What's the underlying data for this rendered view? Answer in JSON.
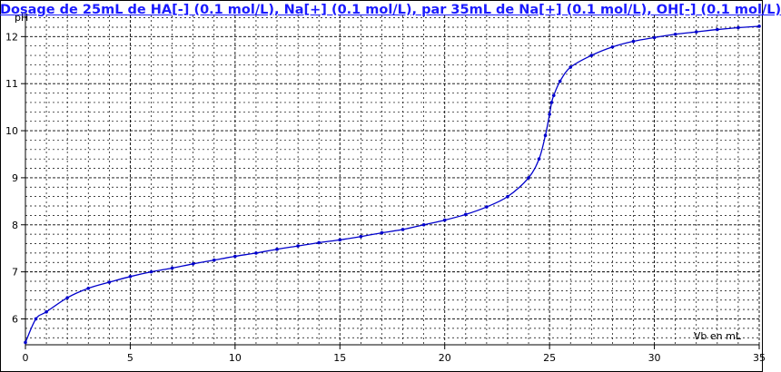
{
  "chart_data": {
    "type": "line",
    "title": "Dosage de 25mL de HA[-] (0.1 mol/L), Na[+] (0.1 mol/L),  par 35mL  de Na[+] (0.1 mol/L), OH[-] (0.1 mol/L)",
    "xlabel": "Vb en mL",
    "ylabel": "pH",
    "xlim": [
      0,
      35
    ],
    "ylim": [
      5.45,
      12.45
    ],
    "x_ticks": [
      "0",
      "5",
      "10",
      "15",
      "20",
      "25",
      "30",
      "35"
    ],
    "y_ticks": [
      "6",
      "7",
      "8",
      "9",
      "10",
      "11",
      "12"
    ],
    "grid": true,
    "series": [
      {
        "color": "#0000cc",
        "x": [
          0,
          0.5,
          1,
          2,
          3,
          4,
          5,
          6,
          7,
          8,
          9,
          10,
          11,
          12,
          13,
          14,
          15,
          16,
          17,
          18,
          19,
          20,
          21,
          22,
          23,
          24,
          24.5,
          24.8,
          25,
          25.1,
          25.2,
          25.5,
          26,
          27,
          28,
          29,
          30,
          31,
          32,
          33,
          34,
          35
        ],
        "y": [
          5.5,
          6.0,
          6.15,
          6.45,
          6.65,
          6.78,
          6.9,
          7.0,
          7.08,
          7.17,
          7.25,
          7.33,
          7.4,
          7.48,
          7.55,
          7.62,
          7.68,
          7.75,
          7.83,
          7.9,
          8.0,
          8.1,
          8.22,
          8.38,
          8.6,
          9.0,
          9.4,
          9.9,
          10.35,
          10.6,
          10.75,
          11.05,
          11.35,
          11.6,
          11.78,
          11.9,
          11.98,
          12.05,
          12.1,
          12.15,
          12.19,
          12.22
        ]
      }
    ]
  }
}
